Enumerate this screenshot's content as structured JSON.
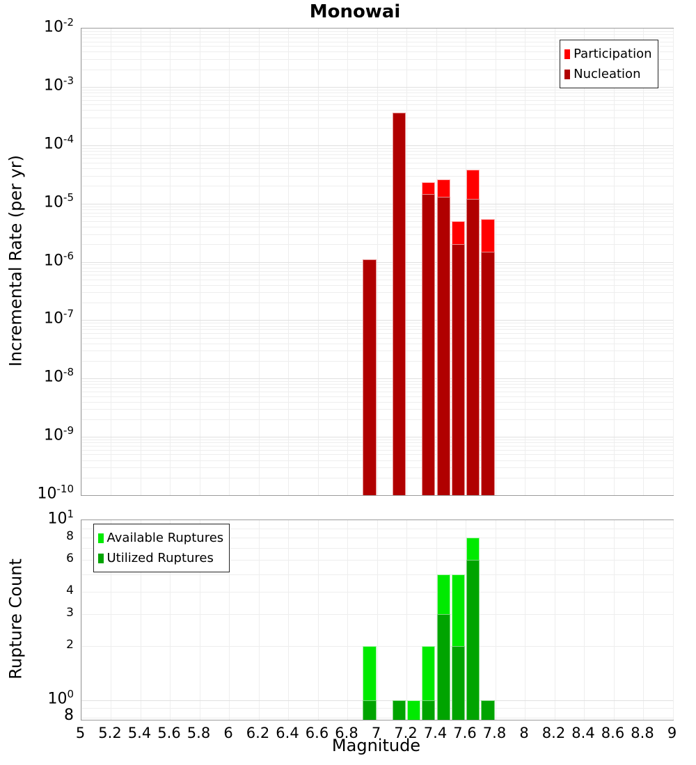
{
  "title": "Monowai",
  "xticks": [
    "5",
    "5.2",
    "5.4",
    "5.6",
    "5.8",
    "6",
    "6.2",
    "6.4",
    "6.6",
    "6.8",
    "7",
    "7.2",
    "7.4",
    "7.6",
    "7.8",
    "8",
    "8.2",
    "8.4",
    "8.6",
    "8.8",
    "9"
  ],
  "chart_data": [
    {
      "id": "rate",
      "type": "bar",
      "title": "Monowai",
      "ylabel": "Incremental Rate (per yr)",
      "xlabel": "",
      "yscale": "log",
      "ylim": [
        1e-10,
        0.01
      ],
      "xlim": [
        5,
        9
      ],
      "bin_width": 0.1,
      "grid": true,
      "legend_position": "top-right",
      "yticks_exponents": [
        -2,
        -3,
        -4,
        -5,
        -6,
        -7,
        -8,
        -9,
        -10
      ],
      "legend": [
        {
          "label": "Participation",
          "color": "#ff0000"
        },
        {
          "label": "Nucleation",
          "color": "#b00000"
        }
      ],
      "series": [
        {
          "name": "Participation",
          "color": "#ff0000",
          "edge_color": "#ffb0b0",
          "x": [
            6.95,
            7.15,
            7.35,
            7.45,
            7.55,
            7.65,
            7.75
          ],
          "values": [
            1.1e-06,
            0.00036,
            2.3e-05,
            2.6e-05,
            5e-06,
            3.8e-05,
            5.4e-06
          ]
        },
        {
          "name": "Nucleation",
          "color": "#b00000",
          "edge_color": "#e89090",
          "x": [
            6.95,
            7.15,
            7.35,
            7.45,
            7.55,
            7.65,
            7.75
          ],
          "values": [
            1.1e-06,
            0.00036,
            1.45e-05,
            1.3e-05,
            2e-06,
            1.2e-05,
            1.5e-06
          ]
        }
      ]
    },
    {
      "id": "count",
      "type": "bar",
      "title": "",
      "ylabel": "Rupture Count",
      "xlabel": "Magnitude",
      "yscale": "log",
      "ylim": [
        0.776,
        10
      ],
      "xlim": [
        5,
        9
      ],
      "bin_width": 0.1,
      "grid": true,
      "legend_position": "top-left",
      "yticks_major": [
        {
          "exponent": 1,
          "value": 10
        },
        {
          "exponent": 0,
          "value": 1
        }
      ],
      "yticks_minor_labeled": [
        {
          "label": "8",
          "value": 8,
          "size": "minor"
        },
        {
          "label": "6",
          "value": 6,
          "size": "minor"
        },
        {
          "label": "4",
          "value": 4,
          "size": "minor"
        },
        {
          "label": "3",
          "value": 3,
          "size": "minor"
        },
        {
          "label": "2",
          "value": 2,
          "size": "minor"
        },
        {
          "label": "8",
          "value": 0.8,
          "size": "major"
        }
      ],
      "legend": [
        {
          "label": "Available Ruptures",
          "color": "#00ea00"
        },
        {
          "label": "Utilized Ruptures",
          "color": "#00a400"
        }
      ],
      "series": [
        {
          "name": "Available Ruptures",
          "color": "#00ea00",
          "edge_color": "#aaf3aa",
          "x": [
            6.95,
            7.15,
            7.25,
            7.35,
            7.45,
            7.55,
            7.65,
            7.75
          ],
          "values": [
            2,
            1,
            1,
            2,
            5,
            5,
            8,
            1
          ]
        },
        {
          "name": "Utilized Ruptures",
          "color": "#00a400",
          "edge_color": "#7fd67f",
          "x": [
            6.95,
            7.15,
            7.25,
            7.35,
            7.45,
            7.55,
            7.65,
            7.75
          ],
          "values": [
            1,
            1,
            0,
            1,
            3,
            2,
            6,
            1
          ]
        }
      ]
    }
  ]
}
